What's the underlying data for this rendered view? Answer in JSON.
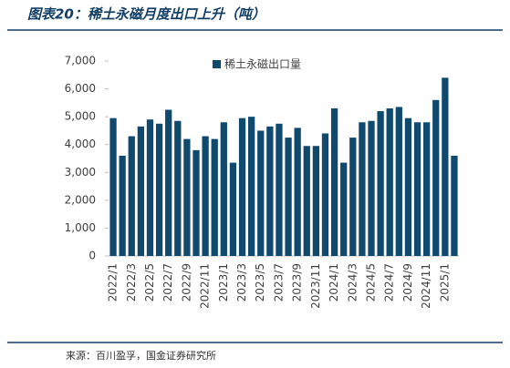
{
  "chart_data": {
    "type": "bar",
    "title": "图表20：稀土永磁月度出口上升（吨）",
    "source": "来源：百川盈孚，国金证券研究所",
    "series": [
      {
        "name": "稀土永磁出口量",
        "color": "#0f4a6e",
        "values": [
          4950,
          3600,
          4300,
          4650,
          4900,
          4750,
          5250,
          4850,
          4200,
          3800,
          4300,
          4200,
          4800,
          3350,
          4950,
          5000,
          4500,
          4650,
          4750,
          4250,
          4600,
          3950,
          3950,
          4400,
          5300,
          3350,
          4250,
          4800,
          4850,
          5200,
          5300,
          5350,
          4950,
          4800,
          4800,
          5600,
          6400,
          3600
        ]
      }
    ],
    "categories": [
      "2022/1",
      null,
      "2022/3",
      null,
      "2022/5",
      null,
      "2022/7",
      null,
      "2022/9",
      null,
      "2022/11",
      null,
      "2023/1",
      null,
      "2023/3",
      null,
      "2023/5",
      null,
      "2023/7",
      null,
      "2023/9",
      null,
      "2023/11",
      null,
      "2024/1",
      null,
      "2024/3",
      null,
      "2024/5",
      null,
      "2024/7",
      null,
      "2024/9",
      null,
      "2024/11",
      null,
      "2025/1",
      null
    ],
    "ylim": [
      0,
      7000
    ],
    "yticks": [
      0,
      {
        "value": 1000,
        "label": "1,000"
      },
      {
        "value": 2000,
        "label": "2,000"
      },
      {
        "value": 3000,
        "label": "3,000"
      },
      {
        "value": 4000,
        "label": "4,000"
      },
      {
        "value": 5000,
        "label": "5,000"
      },
      {
        "value": 6000,
        "label": "6,000"
      },
      {
        "value": 7000,
        "label": "7,000"
      }
    ],
    "legend": "top"
  }
}
